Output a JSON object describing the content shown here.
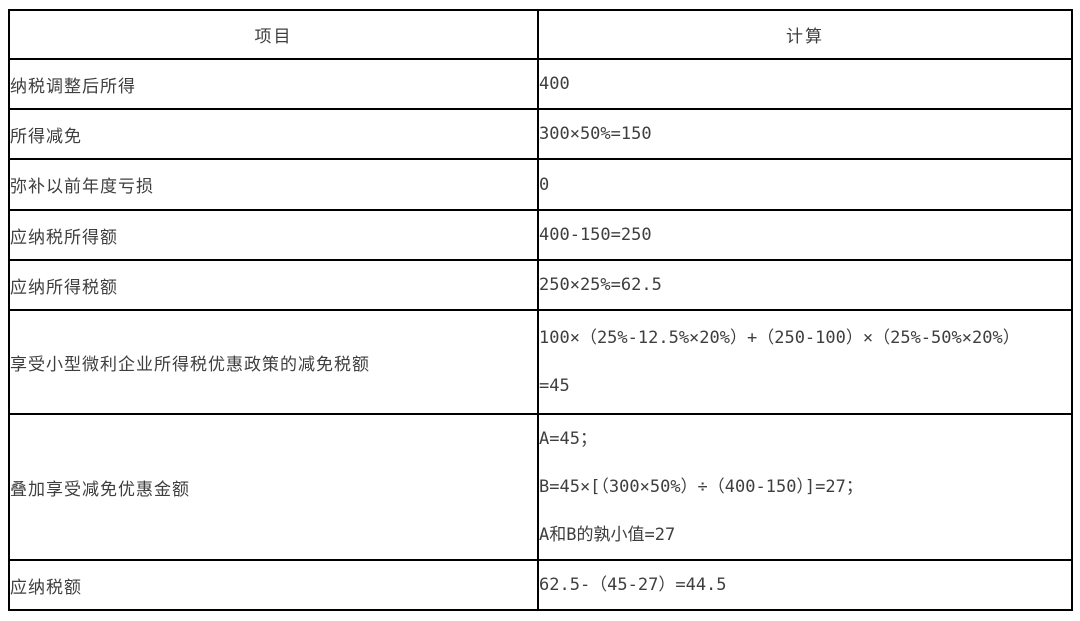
{
  "table": {
    "title_semantics": "small-low-profit-enterprise income tax calculation table",
    "colors": {
      "border": "#000000",
      "text": "#3e3e3e",
      "background": "#ffffff"
    },
    "headers": {
      "item": "项目",
      "calculation": "计算"
    },
    "rows": [
      {
        "label": "纳税调整后所得",
        "lines": [
          "400"
        ]
      },
      {
        "label": "所得减免",
        "lines": [
          "300×50%=150"
        ]
      },
      {
        "label": "弥补以前年度亏损",
        "lines": [
          "0"
        ]
      },
      {
        "label": "应纳税所得额",
        "lines": [
          "400-150=250"
        ]
      },
      {
        "label": "应纳所得税额",
        "lines": [
          "250×25%=62.5"
        ]
      },
      {
        "label": "享受小型微利企业所得税优惠政策的减免税额",
        "lines": [
          "100×（25%-12.5%×20%）+（250-100）×（25%-50%×20%）",
          "=45"
        ]
      },
      {
        "label": "叠加享受减免优惠金额",
        "lines": [
          "A=45；",
          "B=45×[（300×50%）÷（400-150）]=27；",
          "A和B的孰小值=27"
        ]
      },
      {
        "label": "应纳税额",
        "lines": [
          "62.5-（45-27）=44.5"
        ]
      }
    ]
  }
}
